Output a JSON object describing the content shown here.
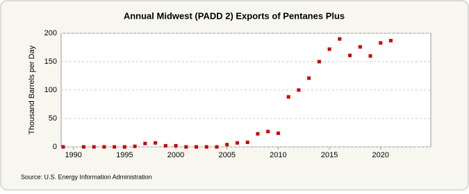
{
  "chart_data": {
    "type": "scatter",
    "title": "Annual Midwest (PADD 2) Exports of Pentanes Plus",
    "y_label": "Thousand Barrels per Day",
    "source": "Source: U.S. Energy Information Administration",
    "color": "#cc0000",
    "x": [
      1989,
      1991,
      1992,
      1993,
      1994,
      1995,
      1996,
      1997,
      1998,
      1999,
      2000,
      2001,
      2002,
      2003,
      2004,
      2005,
      2006,
      2007,
      2008,
      2009,
      2010,
      2011,
      2012,
      2013,
      2014,
      2015,
      2016,
      2017,
      2018,
      2019,
      2020,
      2021
    ],
    "values": [
      0,
      0,
      0,
      0,
      0,
      0,
      1,
      6,
      7,
      2,
      2,
      0,
      0,
      0,
      0,
      4,
      7,
      8,
      23,
      27,
      24,
      88,
      100,
      121,
      150,
      172,
      190,
      161,
      176,
      160,
      183,
      187
    ],
    "xlim": [
      1988.8,
      2024.9
    ],
    "ylim": [
      0,
      200
    ],
    "xticks": [
      1990,
      1995,
      2000,
      2005,
      2010,
      2015,
      2020
    ],
    "yticks": [
      0,
      50,
      100,
      150,
      200
    ],
    "grid": true
  }
}
